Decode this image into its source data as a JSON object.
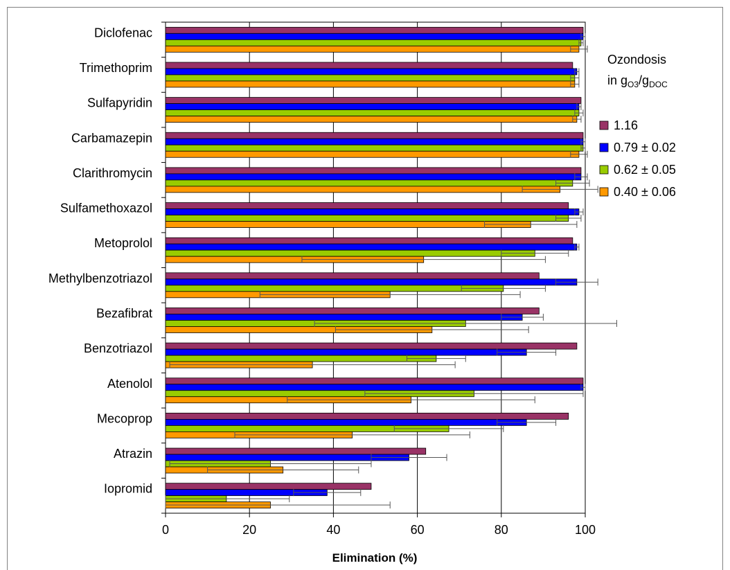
{
  "chart_data": {
    "type": "bar",
    "orientation": "horizontal",
    "categories": [
      "Diclofenac",
      "Trimethoprim",
      "Sulfapyridin",
      "Carbamazepin",
      "Clarithromycin",
      "Sulfamethoxazol",
      "Metoprolol",
      "Methylbenzotriazol",
      "Bezafibrat",
      "Benzotriazol",
      "Atenolol",
      "Mecoprop",
      "Atrazin",
      "Iopromid"
    ],
    "series": [
      {
        "name": "1.16",
        "color": "#993366",
        "values": [
          99.5,
          97,
          99,
          99.5,
          99,
          96,
          97,
          89,
          89,
          98,
          99.5,
          96,
          62,
          49
        ],
        "errors": [
          0,
          0,
          0,
          0,
          0,
          0,
          0,
          0,
          0,
          0,
          0,
          0,
          0,
          0
        ]
      },
      {
        "name": "0.79 ± 0.02",
        "color": "#0000ff",
        "values": [
          99.5,
          98,
          98.5,
          99.5,
          99,
          98.5,
          98,
          98,
          85,
          86,
          99.5,
          86,
          58,
          38.5
        ],
        "errors": [
          0.5,
          0.5,
          0.5,
          0.5,
          1.5,
          1,
          0.5,
          5,
          5,
          7,
          0.5,
          7,
          9,
          8
        ]
      },
      {
        "name": "0.62 ± 0.05",
        "color": "#99cc00",
        "values": [
          99,
          97.5,
          98.5,
          99.5,
          97,
          96,
          88,
          80.5,
          71.5,
          64.5,
          73.5,
          67.5,
          25,
          14.5
        ],
        "errors": [
          0.5,
          1,
          1,
          0.5,
          4,
          3,
          8,
          10,
          36,
          7,
          26,
          13,
          24,
          15
        ]
      },
      {
        "name": "0.40 ± 0.06",
        "color": "#ff9900",
        "values": [
          98.5,
          97.5,
          98,
          98.5,
          94,
          87,
          61.5,
          53.5,
          63.5,
          35,
          58.5,
          44.5,
          28,
          25
        ],
        "errors": [
          2,
          1,
          1,
          2,
          9,
          11,
          29,
          31,
          23,
          34,
          29.5,
          28,
          18,
          28.5
        ]
      }
    ],
    "xlabel": "Elimination (%)",
    "xlim": [
      0,
      100
    ],
    "xticks": [
      0,
      20,
      40,
      60,
      80,
      100
    ],
    "grid": "vertical",
    "legend": {
      "title_line1": "Ozondosis",
      "title_line2_prefix": "in g",
      "title_sub1": "O3",
      "title_mid": "/g",
      "title_sub2": "DOC",
      "placement": "right"
    }
  }
}
